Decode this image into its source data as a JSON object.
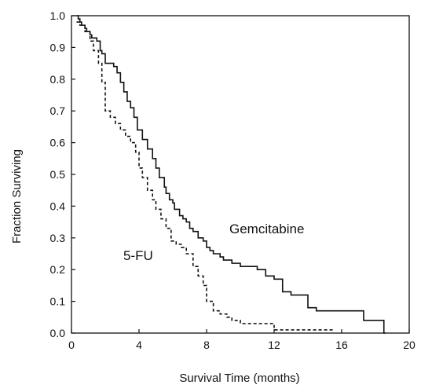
{
  "chart_data": {
    "type": "line",
    "subtype": "step (Kaplan-Meier survival curve)",
    "xlabel": "Survival Time (months)",
    "ylabel": "Fraction Surviving",
    "xlim": [
      0,
      20
    ],
    "ylim": [
      0.0,
      1.0
    ],
    "x_ticks": [
      0,
      4,
      8,
      12,
      16,
      20
    ],
    "x_tick_labels": [
      "0",
      "4",
      "8",
      "12",
      "16",
      "20"
    ],
    "y_ticks": [
      0.0,
      0.1,
      0.2,
      0.3,
      0.4,
      0.5,
      0.6,
      0.7,
      0.8,
      0.9,
      1.0
    ],
    "y_tick_labels": [
      "0.0",
      "0.1",
      "0.2",
      "0.3",
      "0.4",
      "0.5",
      "0.6",
      "0.7",
      "0.8",
      "0.9",
      "1.0"
    ],
    "grid": false,
    "legend": "none (series labelled directly on plot)",
    "series": [
      {
        "name": "Gemcitabine",
        "line_style": "solid",
        "color": "#111111",
        "label_position": "right of curve, near x=8-12",
        "x": [
          0.3,
          0.4,
          0.5,
          0.6,
          0.8,
          0.9,
          1.1,
          1.2,
          1.5,
          1.7,
          1.8,
          2.0,
          2.1,
          2.5,
          2.7,
          2.9,
          3.1,
          3.3,
          3.5,
          3.7,
          3.9,
          4.2,
          4.5,
          4.8,
          5.0,
          5.2,
          5.5,
          5.6,
          5.8,
          6.0,
          6.1,
          6.4,
          6.6,
          6.8,
          7.0,
          7.2,
          7.5,
          7.8,
          8.0,
          8.2,
          8.4,
          8.8,
          9.0,
          9.5,
          10.0,
          11.0,
          11.5,
          12.0,
          12.5,
          13.0,
          14.0,
          14.5,
          17.3,
          18.5,
          18.6
        ],
        "y": [
          1.0,
          0.99,
          0.98,
          0.97,
          0.96,
          0.95,
          0.94,
          0.93,
          0.92,
          0.89,
          0.88,
          0.85,
          0.85,
          0.84,
          0.82,
          0.79,
          0.76,
          0.73,
          0.71,
          0.68,
          0.64,
          0.61,
          0.58,
          0.55,
          0.52,
          0.49,
          0.46,
          0.44,
          0.42,
          0.41,
          0.39,
          0.37,
          0.36,
          0.35,
          0.33,
          0.32,
          0.3,
          0.29,
          0.27,
          0.26,
          0.25,
          0.24,
          0.23,
          0.22,
          0.21,
          0.2,
          0.18,
          0.17,
          0.13,
          0.12,
          0.08,
          0.07,
          0.04,
          0.0,
          0.0
        ]
      },
      {
        "name": "5-FU",
        "line_style": "dashed",
        "color": "#111111",
        "label_position": "left of curve, near x=4",
        "x": [
          0.3,
          0.5,
          0.8,
          1.1,
          1.3,
          1.6,
          1.8,
          2.0,
          2.3,
          2.6,
          2.9,
          3.2,
          3.5,
          3.8,
          4.0,
          4.2,
          4.5,
          4.8,
          5.0,
          5.3,
          5.6,
          5.9,
          6.2,
          6.5,
          6.8,
          7.2,
          7.5,
          7.8,
          8.0,
          8.4,
          8.8,
          9.2,
          9.5,
          10.0,
          11.0,
          12.0,
          13.0,
          14.0,
          15.5
        ],
        "y": [
          0.98,
          0.97,
          0.95,
          0.92,
          0.89,
          0.85,
          0.79,
          0.7,
          0.68,
          0.66,
          0.64,
          0.62,
          0.6,
          0.57,
          0.52,
          0.49,
          0.45,
          0.42,
          0.39,
          0.36,
          0.33,
          0.29,
          0.28,
          0.27,
          0.25,
          0.21,
          0.18,
          0.15,
          0.1,
          0.07,
          0.06,
          0.05,
          0.04,
          0.03,
          0.03,
          0.01,
          0.01,
          0.01,
          0.01
        ]
      }
    ]
  }
}
